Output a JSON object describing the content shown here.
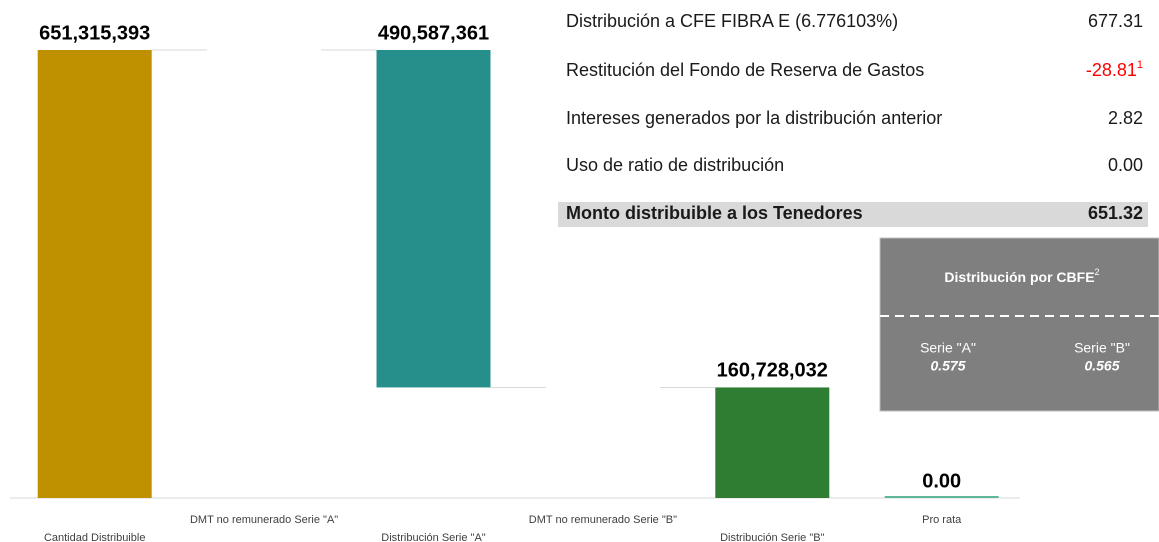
{
  "chart_data": {
    "type": "waterfall",
    "categories": [
      "Cantidad Distribuible",
      "DMT no remunerado Serie \"A\"",
      "Distribución Serie \"A\"",
      "DMT no remunerado Serie \"B\"",
      "Distribución Serie \"B\"",
      "Pro rata"
    ],
    "values": [
      651315393,
      0,
      490587361,
      0,
      160728032,
      0
    ],
    "value_labels": [
      "651,315,393",
      null,
      "490,587,361",
      null,
      "160,728,032",
      "0.00"
    ],
    "colors": [
      "#bf9000",
      "#bf9000",
      "#268f8c",
      "#268f8c",
      "#2e7d32",
      "#5fb89a"
    ]
  },
  "table": {
    "rows": [
      [
        "Distribución a CFE FIBRA E (6.776103%)",
        "677.31"
      ],
      [
        "Restitución del Fondo de Reserva de Gastos",
        "-28.81"
      ],
      [
        "Intereses generados por la distribución anterior",
        "2.82"
      ],
      [
        "Uso de ratio de distribución",
        "0.00"
      ],
      [
        "Monto distribuible a los Tenedores",
        "651.32"
      ]
    ],
    "footnote": "1"
  },
  "box": {
    "title": "Distribución por CBFE",
    "footnote": "2",
    "items": [
      {
        "label": "Serie \"A\"",
        "value": "0.575"
      },
      {
        "label": "Serie \"B\"",
        "value": "0.565"
      }
    ]
  }
}
